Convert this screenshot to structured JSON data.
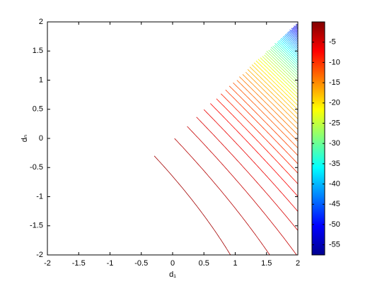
{
  "chart_data": {
    "type": "contour",
    "xlabel": "d₁",
    "ylabel": "dₙ",
    "xlim": [
      -2,
      2
    ],
    "xticks": [
      -2,
      -1.5,
      -1,
      -0.5,
      0,
      0.5,
      1,
      1.5,
      2
    ],
    "ylim": [
      -2,
      2
    ],
    "yticks": [
      -2,
      -1.5,
      -1,
      -0.5,
      0,
      0.5,
      1,
      1.5,
      2
    ],
    "colormap": "jet",
    "clim": [
      -57.5,
      0
    ],
    "cticks": [
      -55,
      -50,
      -45,
      -40,
      -35,
      -30,
      -25,
      -20,
      -15,
      -10,
      -5
    ],
    "levels": [
      -56,
      -55,
      -54,
      -53,
      -52,
      -51,
      -50,
      -49,
      -48,
      -47,
      -46,
      -45,
      -44,
      -43,
      -42,
      -41,
      -40,
      -39,
      -38,
      -37,
      -36,
      -35,
      -34,
      -33,
      -32,
      -31,
      -30,
      -29,
      -28,
      -27,
      -26,
      -25,
      -24,
      -23,
      -22,
      -21,
      -20,
      -19,
      -18,
      -17,
      -16,
      -15,
      -14,
      -13,
      -12,
      -11,
      -10,
      -9,
      -8,
      -7,
      -6,
      -5,
      -4,
      -3,
      -2,
      -1
    ]
  }
}
